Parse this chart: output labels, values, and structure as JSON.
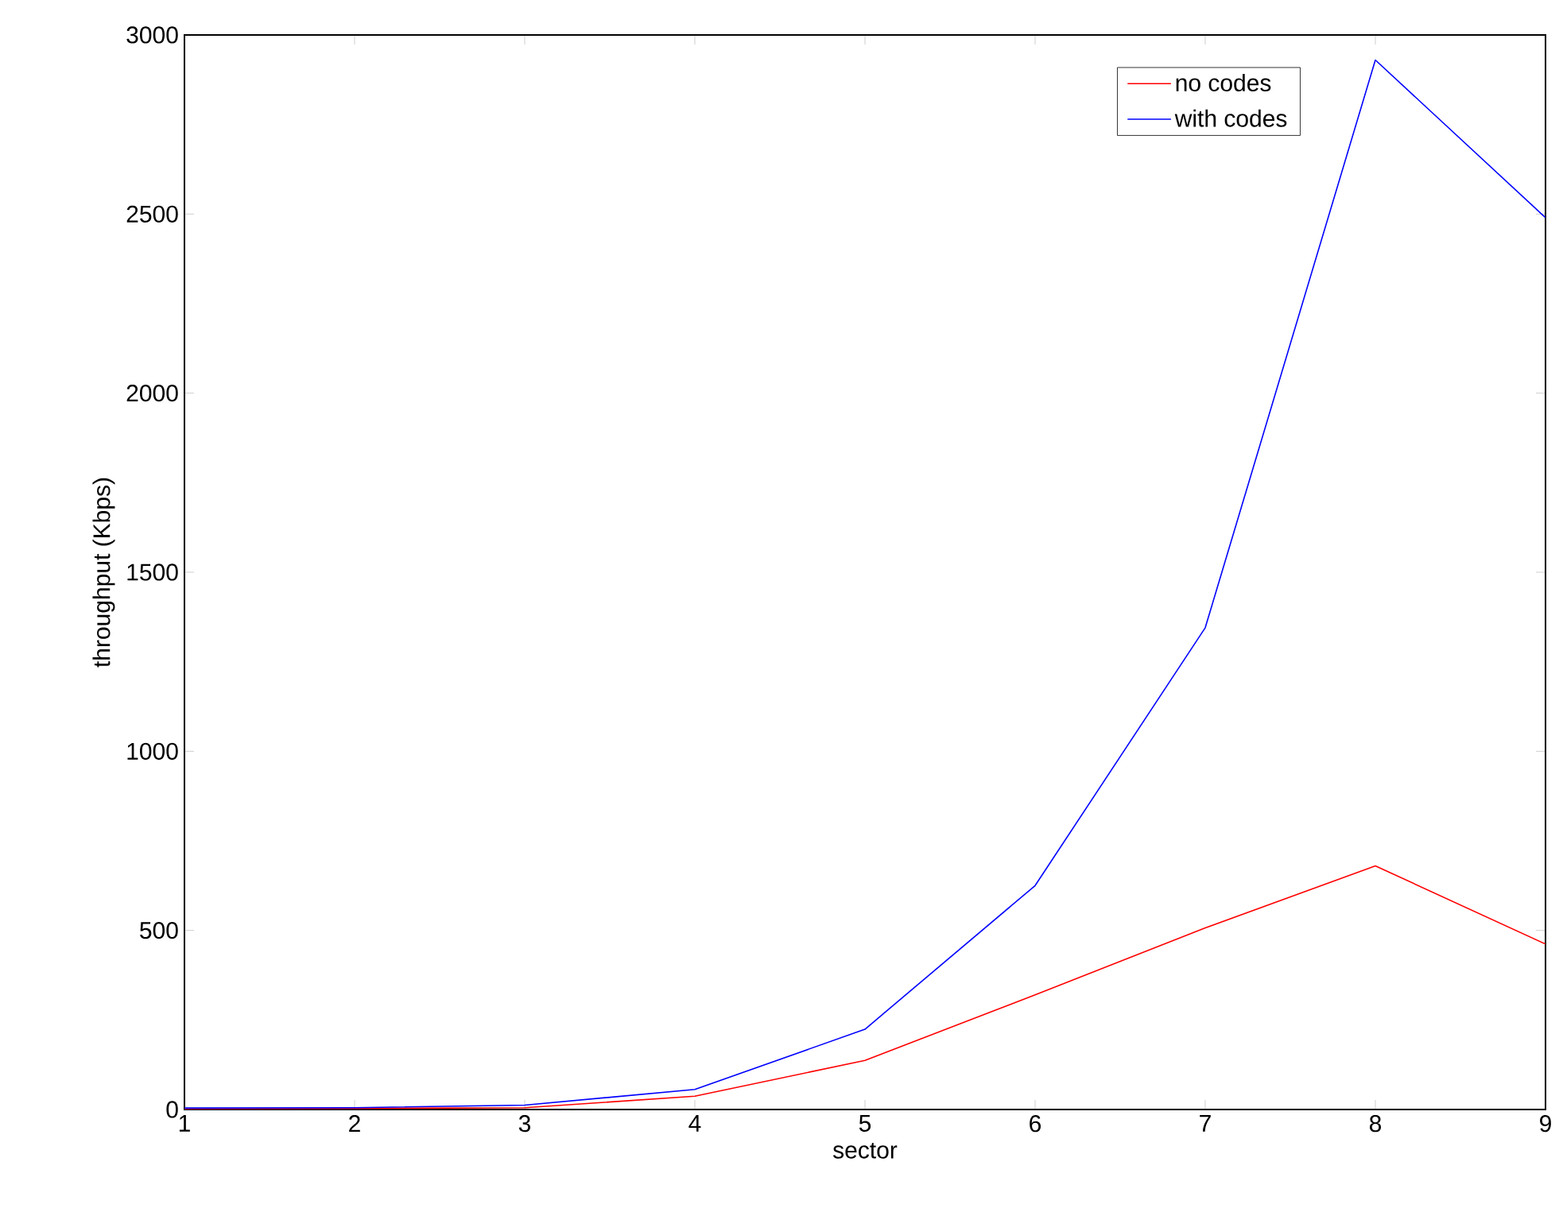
{
  "chart_data": {
    "type": "line",
    "xlabel": "sector",
    "ylabel": "throughput (Kbps)",
    "x": [
      1,
      2,
      3,
      4,
      5,
      6,
      7,
      8,
      9
    ],
    "series": [
      {
        "name": "no codes",
        "color": "#ff0000",
        "values": [
          2,
          3,
          5,
          37,
          137,
          320,
          507,
          680,
          462
        ]
      },
      {
        "name": "with codes",
        "color": "#0000ff",
        "values": [
          4,
          5,
          12,
          56,
          224,
          625,
          1345,
          2930,
          2490
        ]
      }
    ],
    "xlim": [
      1,
      9
    ],
    "ylim": [
      0,
      3000
    ],
    "xticks": [
      1,
      2,
      3,
      4,
      5,
      6,
      7,
      8,
      9
    ],
    "yticks": [
      0,
      500,
      1000,
      1500,
      2000,
      2500,
      3000
    ],
    "legend": "top right",
    "grid": false,
    "marker": "none",
    "line_style": "solid"
  }
}
